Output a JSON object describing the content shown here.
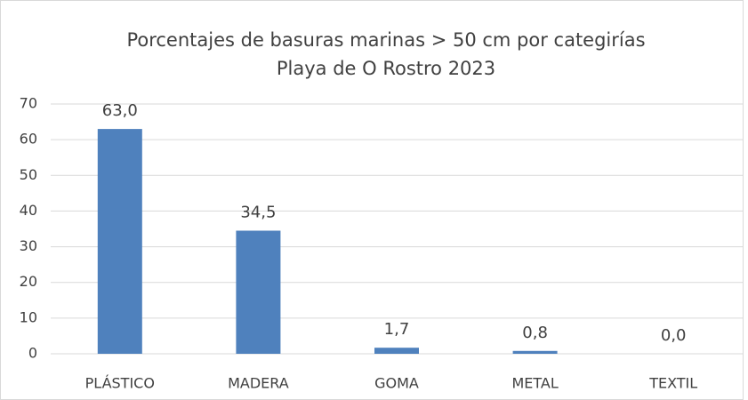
{
  "chart_data": {
    "type": "bar",
    "title": [
      "Porcentajes de basuras marinas > 50 cm por categirías",
      "Playa de O Rostro 2023"
    ],
    "categories": [
      "PLÁSTICO",
      "MADERA",
      "GOMA",
      "METAL",
      "TEXTIL"
    ],
    "values": [
      63.0,
      34.5,
      1.7,
      0.8,
      0.0
    ],
    "value_labels": [
      "63,0",
      "34,5",
      "1,7",
      "0,8",
      "0,0"
    ],
    "color": "#4f81bd",
    "ylim": [
      0,
      70
    ],
    "yticks": [
      0,
      10,
      20,
      30,
      40,
      50,
      60,
      70
    ],
    "grid": true
  }
}
